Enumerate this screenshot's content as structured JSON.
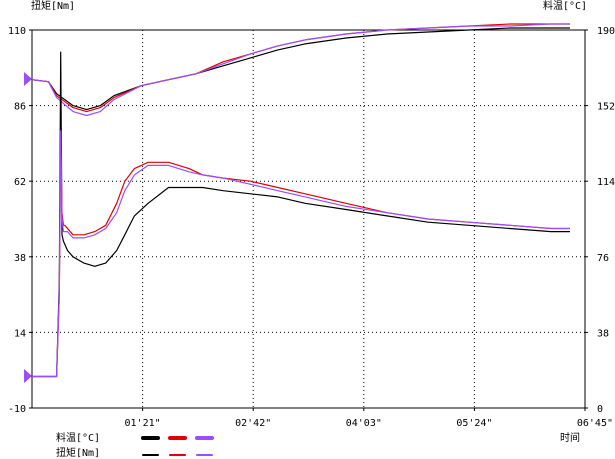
{
  "chart_data": {
    "type": "line",
    "y_left_label": "扭矩[Nm]",
    "y_right_label": "料温[°C]",
    "x_label": "时间",
    "x_ticks": [
      "01'21\"",
      "02'42\"",
      "04'03\"",
      "05'24\"",
      "06'45\""
    ],
    "x_range_s": [
      0,
      405
    ],
    "y_left_ticks": [
      110,
      86,
      62,
      38,
      14,
      -10
    ],
    "y_left_range": [
      -10,
      110
    ],
    "y_right_ticks": [
      190,
      152,
      114,
      76,
      38,
      0
    ],
    "y_right_range": [
      0,
      190
    ],
    "legend": {
      "rows": [
        {
          "label": "料温[°C]",
          "style": "thick",
          "colors": [
            "#000000",
            "#e00000",
            "#9b4dff"
          ]
        },
        {
          "label": "扭矩[Nm]",
          "style": "thin",
          "colors": [
            "#000000",
            "#e00000",
            "#9b4dff"
          ]
        }
      ]
    },
    "series": [
      {
        "quantity": "料温[°C]",
        "color": "#000000",
        "x": [
          0,
          12,
          18,
          30,
          40,
          50,
          60,
          80,
          100,
          120,
          140,
          160,
          180,
          200,
          230,
          260,
          290,
          320,
          350,
          380,
          394
        ],
        "y": [
          165,
          164,
          158,
          152,
          150,
          152,
          157,
          162,
          165,
          168,
          172,
          176,
          180,
          183,
          186,
          188,
          189,
          190,
          191,
          191,
          191
        ]
      },
      {
        "quantity": "料温[°C]",
        "color": "#e00000",
        "x": [
          0,
          12,
          18,
          30,
          40,
          50,
          60,
          80,
          100,
          120,
          140,
          160,
          180,
          200,
          230,
          260,
          290,
          320,
          350,
          380,
          394
        ],
        "y": [
          165,
          164,
          157,
          151,
          149,
          151,
          156,
          162,
          165,
          168,
          174,
          178,
          182,
          185,
          188,
          190,
          191,
          192,
          193,
          193,
          193
        ]
      },
      {
        "quantity": "料温[°C]",
        "color": "#9b4dff",
        "x": [
          0,
          12,
          18,
          30,
          40,
          50,
          60,
          80,
          100,
          120,
          140,
          160,
          180,
          200,
          230,
          260,
          290,
          320,
          350,
          380,
          394
        ],
        "y": [
          165,
          164,
          156,
          149,
          147,
          149,
          155,
          162,
          165,
          168,
          173,
          178,
          182,
          185,
          188,
          190,
          191,
          192,
          192,
          193,
          193
        ]
      },
      {
        "quantity": "扭矩[Nm]",
        "color": "#000000",
        "x": [
          0,
          18,
          20,
          21,
          22,
          23,
          24,
          26,
          30,
          38,
          46,
          54,
          62,
          68,
          75,
          85,
          100,
          115,
          125,
          140,
          160,
          180,
          200,
          230,
          260,
          290,
          320,
          350,
          380,
          394
        ],
        "y": [
          0,
          0,
          30,
          103,
          45,
          43,
          42,
          40,
          38,
          36,
          35,
          36,
          40,
          45,
          51,
          55,
          60,
          60,
          60,
          59,
          58,
          57,
          55,
          53,
          51,
          49,
          48,
          47,
          46,
          46
        ]
      },
      {
        "quantity": "扭矩[Nm]",
        "color": "#e00000",
        "x": [
          0,
          18,
          20,
          21,
          22,
          23,
          24,
          26,
          30,
          38,
          46,
          54,
          62,
          68,
          75,
          85,
          100,
          115,
          125,
          140,
          160,
          180,
          200,
          230,
          260,
          290,
          320,
          350,
          380,
          394
        ],
        "y": [
          0,
          0,
          26,
          75,
          52,
          48,
          48,
          47,
          45,
          45,
          46,
          48,
          55,
          62,
          66,
          68,
          68,
          66,
          64,
          63,
          62,
          60,
          58,
          55,
          52,
          50,
          49,
          48,
          47,
          47
        ]
      },
      {
        "quantity": "扭矩[Nm]",
        "color": "#9b4dff",
        "x": [
          0,
          18,
          20,
          21,
          22,
          23,
          24,
          26,
          30,
          38,
          46,
          54,
          62,
          68,
          75,
          85,
          100,
          115,
          125,
          140,
          160,
          180,
          200,
          230,
          260,
          290,
          320,
          350,
          380,
          394
        ],
        "y": [
          0,
          0,
          26,
          78,
          50,
          46,
          46,
          46,
          44,
          44,
          45,
          47,
          52,
          59,
          64,
          67,
          67,
          65,
          64,
          63,
          61,
          59,
          57,
          54,
          52,
          50,
          49,
          48,
          47,
          47
        ]
      }
    ]
  }
}
